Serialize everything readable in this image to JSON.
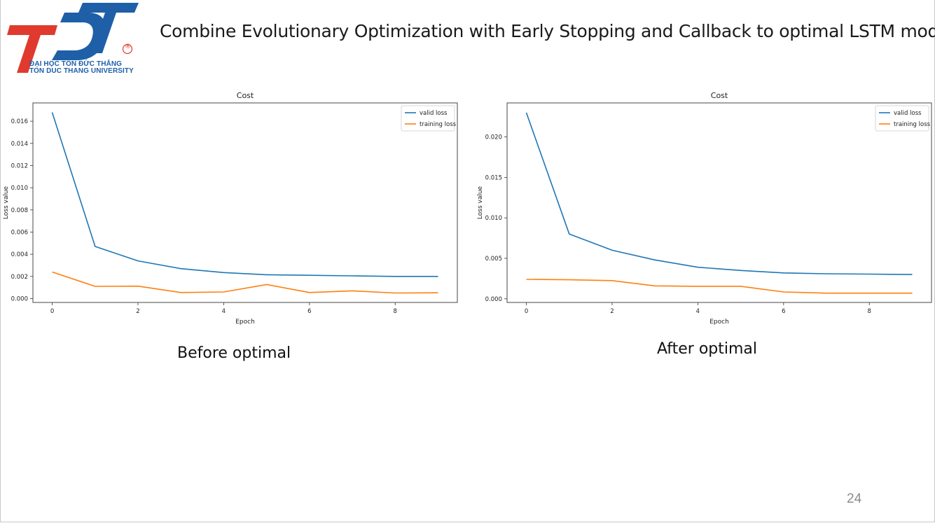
{
  "slide": {
    "title": "Combine Evolutionary Optimization with Early Stopping and Callback to optimal LSTM model",
    "page_number": "24"
  },
  "logo": {
    "letters": "TDT",
    "line1": "ĐẠI HỌC TÔN ĐỨC THẮNG",
    "line2": "TON DUC THANG UNIVERSITY",
    "registered": "®",
    "colors": {
      "red": "#e03a2e",
      "blue": "#1e5fa8"
    }
  },
  "captions": {
    "left": "Before optimal",
    "right": "After optimal"
  },
  "chart_data": [
    {
      "type": "line",
      "title": "Cost",
      "xlabel": "Epoch",
      "ylabel": "Loss value",
      "xlim": [
        -0.45,
        9.45
      ],
      "ylim": [
        -0.00035,
        0.01765
      ],
      "xticks": [
        0,
        2,
        4,
        6,
        8
      ],
      "yticks": [
        0,
        0.002,
        0.004,
        0.006,
        0.008,
        0.01,
        0.012,
        0.014,
        0.016
      ],
      "ytick_labels": [
        "0.000",
        "0.002",
        "0.004",
        "0.006",
        "0.008",
        "0.010",
        "0.012",
        "0.014",
        "0.016"
      ],
      "legend": "top-right",
      "x": [
        0,
        1,
        2,
        3,
        4,
        5,
        6,
        7,
        8,
        9
      ],
      "series": [
        {
          "name": "valid loss",
          "color": "#1f77b4",
          "values": [
            0.0168,
            0.0047,
            0.0034,
            0.0027,
            0.00235,
            0.00215,
            0.0021,
            0.00205,
            0.002,
            0.002
          ]
        },
        {
          "name": "training loss",
          "color": "#ff7f0e",
          "values": [
            0.0024,
            0.0011,
            0.00112,
            0.00055,
            0.0006,
            0.00127,
            0.00055,
            0.0007,
            0.0005,
            0.00052
          ]
        }
      ]
    },
    {
      "type": "line",
      "title": "Cost",
      "xlabel": "Epoch",
      "ylabel": "Loss value",
      "xlim": [
        -0.45,
        9.45
      ],
      "ylim": [
        -0.00045,
        0.0242
      ],
      "xticks": [
        0,
        2,
        4,
        6,
        8
      ],
      "yticks": [
        0,
        0.005,
        0.01,
        0.015,
        0.02
      ],
      "ytick_labels": [
        "0.000",
        "0.005",
        "0.010",
        "0.015",
        "0.020"
      ],
      "legend": "top-right",
      "x": [
        0,
        1,
        2,
        3,
        4,
        5,
        6,
        7,
        8,
        9
      ],
      "series": [
        {
          "name": "valid loss",
          "color": "#1f77b4",
          "values": [
            0.023,
            0.008,
            0.006,
            0.0048,
            0.0039,
            0.0035,
            0.0032,
            0.0031,
            0.00305,
            0.003
          ]
        },
        {
          "name": "training loss",
          "color": "#ff7f0e",
          "values": [
            0.0024,
            0.00235,
            0.00225,
            0.0016,
            0.00155,
            0.00155,
            0.00085,
            0.0007,
            0.0007,
            0.0007
          ]
        }
      ]
    }
  ]
}
